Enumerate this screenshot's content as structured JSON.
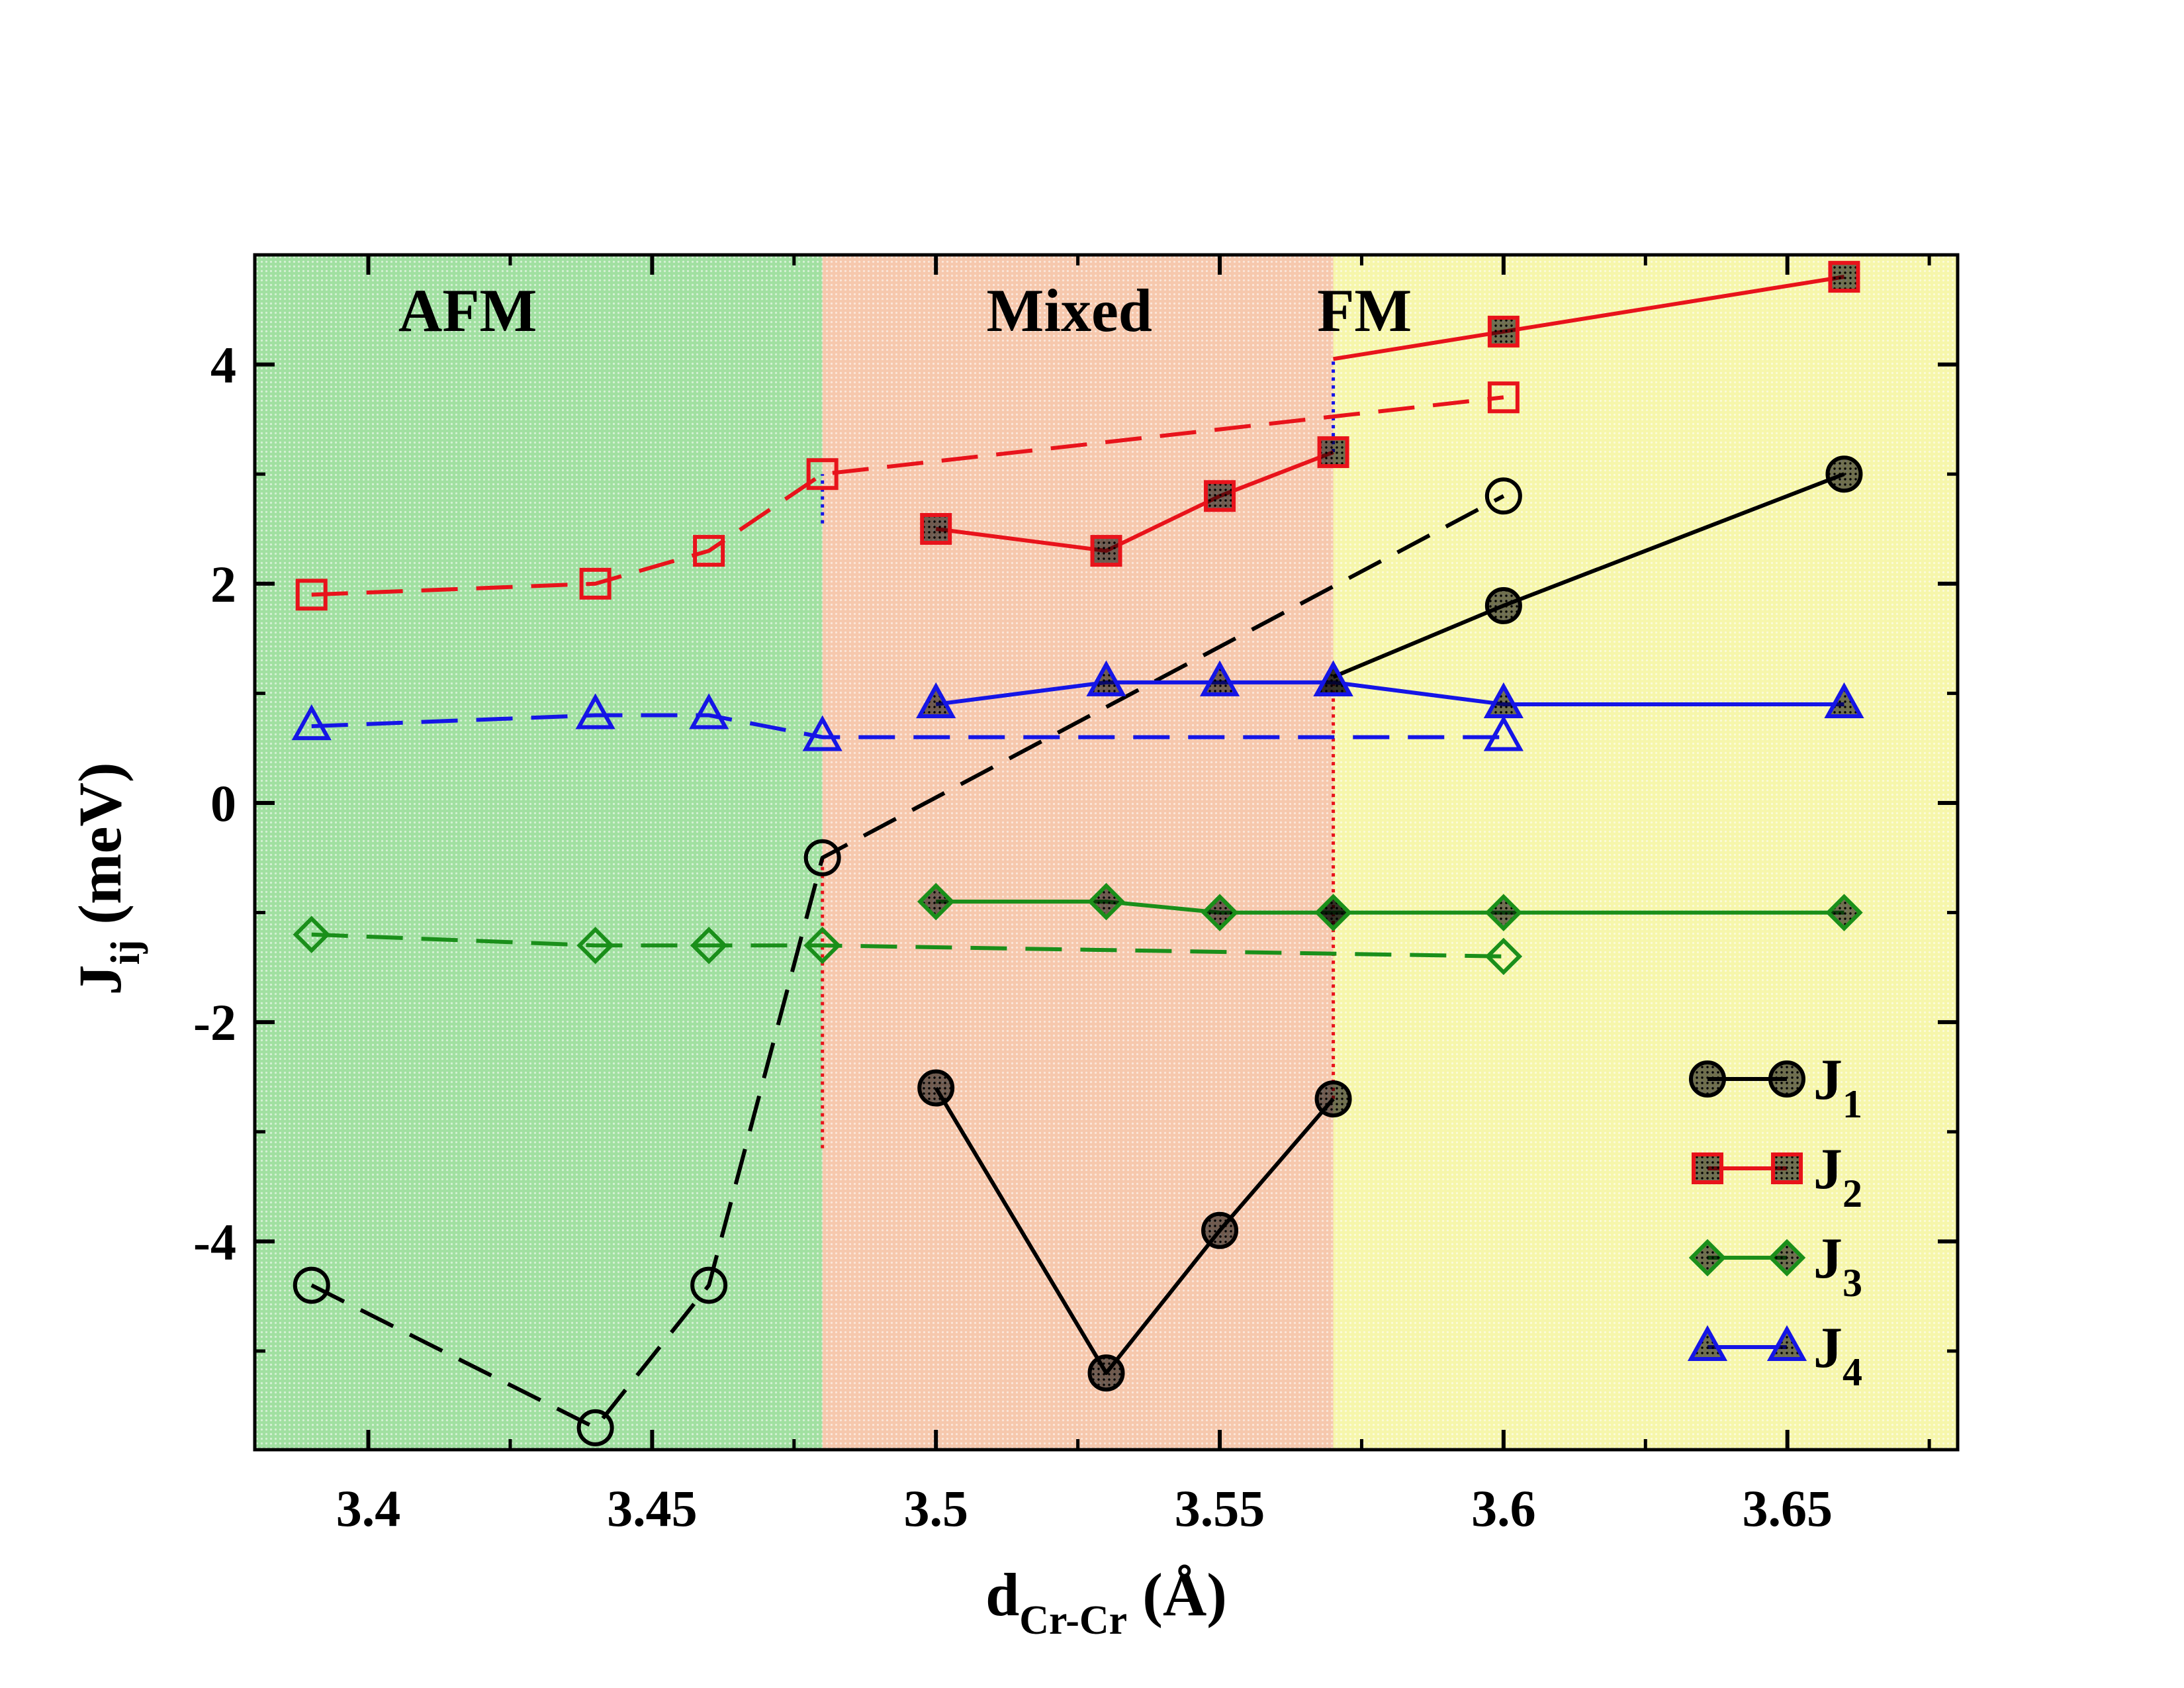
{
  "chart_data": {
    "type": "line",
    "xlabel": {
      "main": "d",
      "sub": "Cr-Cr",
      "unit": " (Å)"
    },
    "ylabel": {
      "main": "J",
      "sub": "ij",
      "unit": " (meV)"
    },
    "xlim": [
      3.38,
      3.68
    ],
    "ylim": [
      -5.9,
      5.0
    ],
    "xticks": [
      3.4,
      3.45,
      3.5,
      3.55,
      3.6,
      3.65
    ],
    "xtick_labels": [
      "3.4",
      "3.45",
      "3.5",
      "3.55",
      "3.6",
      "3.65"
    ],
    "yticks": [
      -4,
      -2,
      0,
      2,
      4
    ],
    "ytick_labels": [
      "-4",
      "-2",
      "0",
      "2",
      "4"
    ],
    "regions": [
      {
        "name": "AFM",
        "x": [
          3.38,
          3.48
        ],
        "color": "#53c653"
      },
      {
        "name": "Mixed",
        "x": [
          3.48,
          3.57
        ],
        "color": "#ee9a6a"
      },
      {
        "name": "FM",
        "x": [
          3.57,
          3.68
        ],
        "color": "#eeee66"
      }
    ],
    "series": [
      {
        "name": "J",
        "sub": "1",
        "color": "#000000",
        "marker": "circle",
        "style": "dashed",
        "filled": false,
        "x": [
          3.39,
          3.44,
          3.46,
          3.48,
          3.6
        ],
        "y": [
          -4.4,
          -5.7,
          -4.4,
          -0.5,
          2.8
        ]
      },
      {
        "name": "J",
        "sub": "2",
        "color": "#e8131b",
        "marker": "square",
        "style": "dashed",
        "filled": false,
        "x": [
          3.39,
          3.44,
          3.46,
          3.48,
          3.6
        ],
        "y": [
          1.9,
          2.0,
          2.3,
          3.0,
          3.7
        ]
      },
      {
        "name": "J",
        "sub": "3",
        "color": "#1a8f1a",
        "marker": "diamond",
        "style": "dashed",
        "filled": false,
        "x": [
          3.39,
          3.44,
          3.46,
          3.48,
          3.6
        ],
        "y": [
          -1.2,
          -1.3,
          -1.3,
          -1.3,
          -1.4
        ]
      },
      {
        "name": "J",
        "sub": "4",
        "color": "#1515e6",
        "marker": "triangle",
        "style": "dashed",
        "filled": false,
        "x": [
          3.39,
          3.44,
          3.46,
          3.48,
          3.6
        ],
        "y": [
          0.7,
          0.8,
          0.8,
          0.6,
          0.6
        ]
      },
      {
        "name": "J",
        "sub": "1",
        "color": "#000000",
        "marker": "circle",
        "style": "solid",
        "filled": true,
        "x": [
          3.5,
          3.53,
          3.55,
          3.57
        ],
        "y": [
          -2.6,
          -5.2,
          -3.9,
          -2.7
        ]
      },
      {
        "name": "J",
        "sub": "2",
        "color": "#e8131b",
        "marker": "square",
        "style": "solid",
        "filled": true,
        "x": [
          3.5,
          3.53,
          3.55,
          3.57
        ],
        "y": [
          2.5,
          2.3,
          2.8,
          3.2
        ]
      },
      {
        "name": "J",
        "sub": "3",
        "color": "#1a8f1a",
        "marker": "diamond",
        "style": "solid",
        "filled": true,
        "x": [
          3.5,
          3.53,
          3.55,
          3.57
        ],
        "y": [
          -0.9,
          -0.9,
          -1.0,
          -1.0
        ]
      },
      {
        "name": "J",
        "sub": "4",
        "color": "#1515e6",
        "marker": "triangle",
        "style": "solid",
        "filled": true,
        "x": [
          3.5,
          3.53,
          3.55,
          3.57
        ],
        "y": [
          0.9,
          1.1,
          1.1,
          1.1
        ]
      },
      {
        "name": "J",
        "sub": "1",
        "color": "#000000",
        "marker": "circle",
        "style": "solid",
        "filled": true,
        "lead_in": true,
        "x": [
          3.57,
          3.6,
          3.66
        ],
        "y": [
          1.15,
          1.8,
          3.0
        ]
      },
      {
        "name": "J",
        "sub": "2",
        "color": "#e8131b",
        "marker": "square",
        "style": "solid",
        "filled": true,
        "lead_in": true,
        "x": [
          3.57,
          3.6,
          3.66
        ],
        "y": [
          4.05,
          4.3,
          4.8
        ]
      },
      {
        "name": "J",
        "sub": "3",
        "color": "#1a8f1a",
        "marker": "diamond",
        "style": "solid",
        "filled": true,
        "x": [
          3.57,
          3.6,
          3.66
        ],
        "y": [
          -1.0,
          -1.0,
          -1.0
        ]
      },
      {
        "name": "J",
        "sub": "4",
        "color": "#1515e6",
        "marker": "triangle",
        "style": "solid",
        "filled": true,
        "x": [
          3.57,
          3.6,
          3.66
        ],
        "y": [
          1.1,
          0.9,
          0.9
        ]
      }
    ],
    "transitions": [
      {
        "x": 3.48,
        "y": [
          2.55,
          3.0
        ],
        "color": "#1515e6"
      },
      {
        "x": 3.48,
        "y": [
          -3.15,
          -0.5
        ],
        "color": "#e8131b"
      },
      {
        "x": 3.57,
        "y": [
          3.2,
          4.05
        ],
        "color": "#1515e6"
      },
      {
        "x": 3.57,
        "y": [
          -2.7,
          1.1
        ],
        "color": "#e8131b"
      }
    ],
    "legend": {
      "position": "bottom-right",
      "items": [
        {
          "name": "J",
          "sub": "1",
          "color": "#000000",
          "marker": "circle"
        },
        {
          "name": "J",
          "sub": "2",
          "color": "#e8131b",
          "marker": "square"
        },
        {
          "name": "J",
          "sub": "3",
          "color": "#1a8f1a",
          "marker": "diamond"
        },
        {
          "name": "J",
          "sub": "4",
          "color": "#1515e6",
          "marker": "triangle"
        }
      ]
    }
  }
}
